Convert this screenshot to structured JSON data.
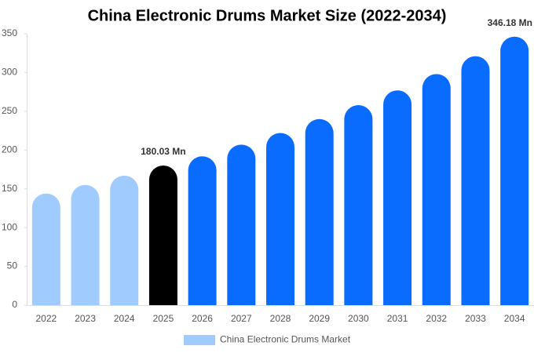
{
  "chart_data": {
    "type": "bar",
    "title": "China Electronic Drums Market Size (2022-2034)",
    "categories": [
      "2022",
      "2023",
      "2024",
      "2025",
      "2026",
      "2027",
      "2028",
      "2029",
      "2030",
      "2031",
      "2032",
      "2033",
      "2034"
    ],
    "series": [
      {
        "name": "China Electronic Drums Market",
        "color": "#a0cbff",
        "values": [
          144,
          155,
          167,
          180.03,
          192,
          207,
          222,
          240,
          258,
          277,
          298,
          321,
          346.18
        ],
        "colors": [
          "#a0cbff",
          "#a0cbff",
          "#a0cbff",
          "#000000",
          "#0a6cff",
          "#0a6cff",
          "#0a6cff",
          "#0a6cff",
          "#0a6cff",
          "#0a6cff",
          "#0a6cff",
          "#0a6cff",
          "#0a6cff"
        ],
        "value_labels": [
          null,
          null,
          null,
          "180.03 Mn",
          null,
          null,
          null,
          null,
          null,
          null,
          null,
          null,
          "346.18 Mn"
        ]
      }
    ],
    "ylim": [
      0,
      350
    ],
    "yticks": [
      0,
      50,
      100,
      150,
      200,
      250,
      300,
      350
    ],
    "grid": false,
    "legend": "bottom"
  }
}
